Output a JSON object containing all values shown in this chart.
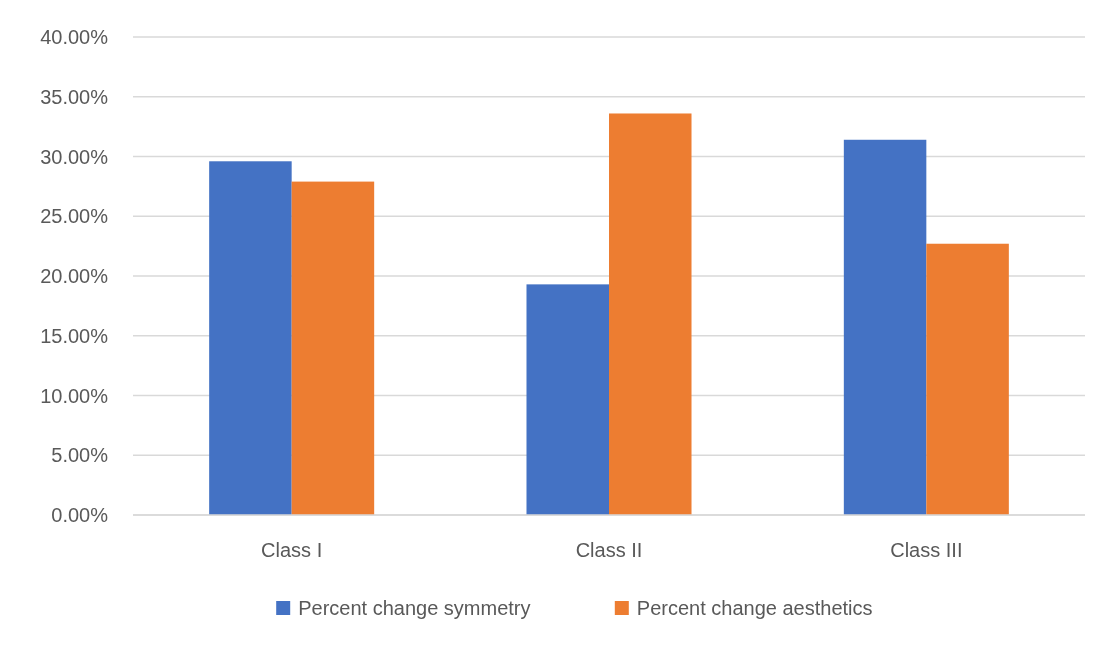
{
  "chart_data": {
    "type": "bar",
    "categories": [
      "Class I",
      "Class II",
      "Class III"
    ],
    "series": [
      {
        "name": "Percent change symmetry",
        "color": "#4472c4",
        "values": [
          29.6,
          19.3,
          31.4
        ]
      },
      {
        "name": "Percent change aesthetics",
        "color": "#ed7d31",
        "values": [
          27.9,
          33.6,
          22.7
        ]
      }
    ],
    "ylim": [
      0,
      40
    ],
    "yticks": [
      {
        "value": 0,
        "label": "0.00%"
      },
      {
        "value": 5,
        "label": "5.00%"
      },
      {
        "value": 10,
        "label": "10.00%"
      },
      {
        "value": 15,
        "label": "15.00%"
      },
      {
        "value": 20,
        "label": "20.00%"
      },
      {
        "value": 25,
        "label": "25.00%"
      },
      {
        "value": 30,
        "label": "30.00%"
      },
      {
        "value": 35,
        "label": "35.00%"
      },
      {
        "value": 40,
        "label": "40.00%"
      }
    ],
    "grid": "y",
    "legend": "bottom"
  }
}
